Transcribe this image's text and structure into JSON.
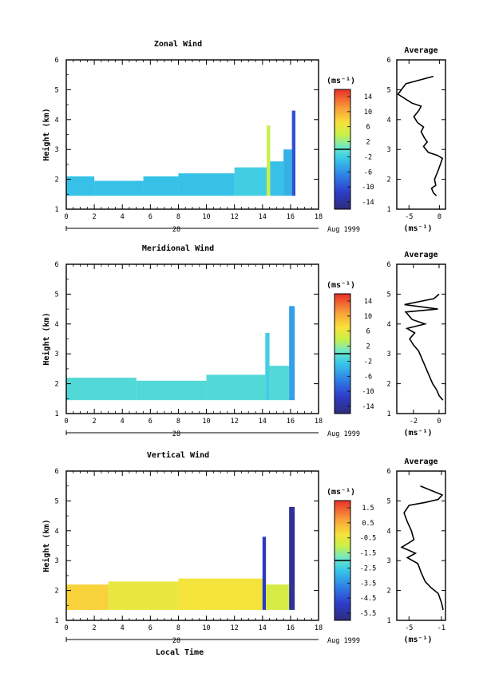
{
  "chart_data": [
    {
      "type": "heatmap",
      "title": "Zonal Wind",
      "ylabel": "Height (km)",
      "xlabel": "",
      "x_ticks": [
        "0",
        "2",
        "4",
        "6",
        "8",
        "10",
        "12",
        "14",
        "16",
        "18"
      ],
      "y_ticks": [
        "1",
        "2",
        "3",
        "4",
        "5",
        "6"
      ],
      "xlim": [
        0,
        18
      ],
      "ylim": [
        1,
        6
      ],
      "date_label": "Aug 1999",
      "day_label": "28",
      "colorbar": {
        "unit": "(ms⁻¹)",
        "tick_labels": [
          "14",
          "10",
          "6",
          "2",
          "-2",
          "-6",
          "-10",
          "-14"
        ],
        "range": [
          -16,
          16
        ]
      },
      "fields": [
        {
          "x0": 0.0,
          "x1": 2.0,
          "y0": 1.45,
          "y1": 2.1,
          "value": -3
        },
        {
          "x0": 2.0,
          "x1": 5.5,
          "y0": 1.45,
          "y1": 1.95,
          "value": -3
        },
        {
          "x0": 5.5,
          "x1": 8.0,
          "y0": 1.45,
          "y1": 2.1,
          "value": -3
        },
        {
          "x0": 8.0,
          "x1": 12.0,
          "y0": 1.45,
          "y1": 2.2,
          "value": -3
        },
        {
          "x0": 12.0,
          "x1": 14.3,
          "y0": 1.45,
          "y1": 2.4,
          "value": -2
        },
        {
          "x0": 14.3,
          "x1": 14.55,
          "y0": 1.45,
          "y1": 3.8,
          "value": 4
        },
        {
          "x0": 14.55,
          "x1": 15.5,
          "y0": 1.45,
          "y1": 2.6,
          "value": -3
        },
        {
          "x0": 15.5,
          "x1": 16.1,
          "y0": 1.45,
          "y1": 3.0,
          "value": -4
        },
        {
          "x0": 16.1,
          "x1": 16.35,
          "y0": 1.45,
          "y1": 4.3,
          "value": -10
        }
      ],
      "average_profile": {
        "title": "Average",
        "xlabel": "(ms⁻¹)",
        "x_ticks": [
          "-5",
          "0"
        ],
        "xlim": [
          -7,
          1
        ],
        "ylim": [
          1,
          6
        ],
        "x": [
          -0.5,
          -1.0,
          -1.3,
          -0.6,
          -0.8,
          -0.2,
          0.5,
          -0.3,
          -1.8,
          -2.6,
          -2.0,
          -2.5,
          -3.0,
          -2.6,
          -3.6,
          -4.2,
          -3.4,
          -3.0,
          -4.5,
          -6.8,
          -5.5,
          -1.0
        ],
        "y": [
          1.45,
          1.55,
          1.7,
          1.8,
          2.0,
          2.3,
          2.7,
          2.8,
          2.9,
          3.1,
          3.25,
          3.4,
          3.6,
          3.75,
          3.9,
          4.1,
          4.3,
          4.45,
          4.55,
          4.85,
          5.2,
          5.45
        ]
      }
    },
    {
      "type": "heatmap",
      "title": "Meridional Wind",
      "ylabel": "Height (km)",
      "xlabel": "",
      "x_ticks": [
        "0",
        "2",
        "4",
        "6",
        "8",
        "10",
        "12",
        "14",
        "16",
        "18"
      ],
      "y_ticks": [
        "1",
        "2",
        "3",
        "4",
        "5",
        "6"
      ],
      "xlim": [
        0,
        18
      ],
      "ylim": [
        1,
        6
      ],
      "date_label": "Aug 1999",
      "day_label": "28",
      "colorbar": {
        "unit": "(ms⁻¹)",
        "tick_labels": [
          "14",
          "10",
          "6",
          "2",
          "-2",
          "-6",
          "-10",
          "-14"
        ],
        "range": [
          -16,
          16
        ]
      },
      "fields": [
        {
          "x0": 0.0,
          "x1": 5.0,
          "y0": 1.45,
          "y1": 2.2,
          "value": -1
        },
        {
          "x0": 5.0,
          "x1": 10.0,
          "y0": 1.45,
          "y1": 2.1,
          "value": -1
        },
        {
          "x0": 10.0,
          "x1": 14.2,
          "y0": 1.45,
          "y1": 2.3,
          "value": -1
        },
        {
          "x0": 14.2,
          "x1": 14.5,
          "y0": 1.45,
          "y1": 3.7,
          "value": -2
        },
        {
          "x0": 14.5,
          "x1": 15.9,
          "y0": 1.45,
          "y1": 2.6,
          "value": -1
        },
        {
          "x0": 15.9,
          "x1": 16.3,
          "y0": 1.45,
          "y1": 4.6,
          "value": -5
        }
      ],
      "average_profile": {
        "title": "Average",
        "xlabel": "(ms⁻¹)",
        "x_ticks": [
          "-2",
          "0"
        ],
        "xlim": [
          -3.3,
          0.5
        ],
        "ylim": [
          1,
          6
        ],
        "x": [
          0.3,
          0.0,
          -0.2,
          -0.5,
          -0.8,
          -1.1,
          -1.4,
          -1.6,
          -2.0,
          -2.3,
          -1.9,
          -2.5,
          -1.1,
          -2.1,
          -2.6,
          -0.1,
          -2.7,
          -0.4,
          0.0
        ],
        "y": [
          1.45,
          1.6,
          1.8,
          2.0,
          2.3,
          2.6,
          2.9,
          3.1,
          3.3,
          3.5,
          3.7,
          3.85,
          4.0,
          4.15,
          4.4,
          4.5,
          4.65,
          4.85,
          5.0
        ]
      }
    },
    {
      "type": "heatmap",
      "title": "Vertical Wind",
      "ylabel": "Height (km)",
      "xlabel": "Local Time",
      "x_ticks": [
        "0",
        "2",
        "4",
        "6",
        "8",
        "10",
        "12",
        "14",
        "16",
        "18"
      ],
      "y_ticks": [
        "1",
        "2",
        "3",
        "4",
        "5",
        "6"
      ],
      "xlim": [
        0,
        18
      ],
      "ylim": [
        1,
        6
      ],
      "date_label": "Aug 1999",
      "day_label": "28",
      "colorbar": {
        "unit": "(ms⁻¹)",
        "tick_labels": [
          "1.5",
          "0.5",
          "-0.5",
          "-1.5",
          "-2.5",
          "-3.5",
          "-4.5",
          "-5.5"
        ],
        "range": [
          -6.0,
          2.0
        ]
      },
      "fields": [
        {
          "x0": 0.0,
          "x1": 3.0,
          "y0": 1.35,
          "y1": 2.2,
          "value": 0.0
        },
        {
          "x0": 3.0,
          "x1": 8.0,
          "y0": 1.35,
          "y1": 2.3,
          "value": -0.5
        },
        {
          "x0": 8.0,
          "x1": 14.0,
          "y0": 1.35,
          "y1": 2.4,
          "value": -0.3
        },
        {
          "x0": 14.0,
          "x1": 14.25,
          "y0": 1.35,
          "y1": 3.8,
          "value": -5.0
        },
        {
          "x0": 14.25,
          "x1": 15.9,
          "y0": 1.35,
          "y1": 2.2,
          "value": -0.8
        },
        {
          "x0": 15.9,
          "x1": 16.3,
          "y0": 1.35,
          "y1": 4.8,
          "value": -5.6
        }
      ],
      "average_profile": {
        "title": "Average",
        "xlabel": "(ms⁻¹)",
        "x_ticks": [
          "-5",
          "-1"
        ],
        "xlim": [
          -6.5,
          -0.5
        ],
        "ylim": [
          1,
          6
        ],
        "x": [
          -0.8,
          -1.0,
          -1.4,
          -2.3,
          -3.0,
          -3.5,
          -3.9,
          -5.2,
          -4.2,
          -5.9,
          -4.4,
          -4.7,
          -5.2,
          -5.6,
          -5.0,
          -3.0,
          -1.4,
          -0.9,
          -3.6
        ],
        "y": [
          1.35,
          1.6,
          1.9,
          2.1,
          2.3,
          2.6,
          2.9,
          3.1,
          3.25,
          3.45,
          3.7,
          4.0,
          4.3,
          4.6,
          4.85,
          4.95,
          5.05,
          5.2,
          5.5
        ]
      }
    }
  ]
}
